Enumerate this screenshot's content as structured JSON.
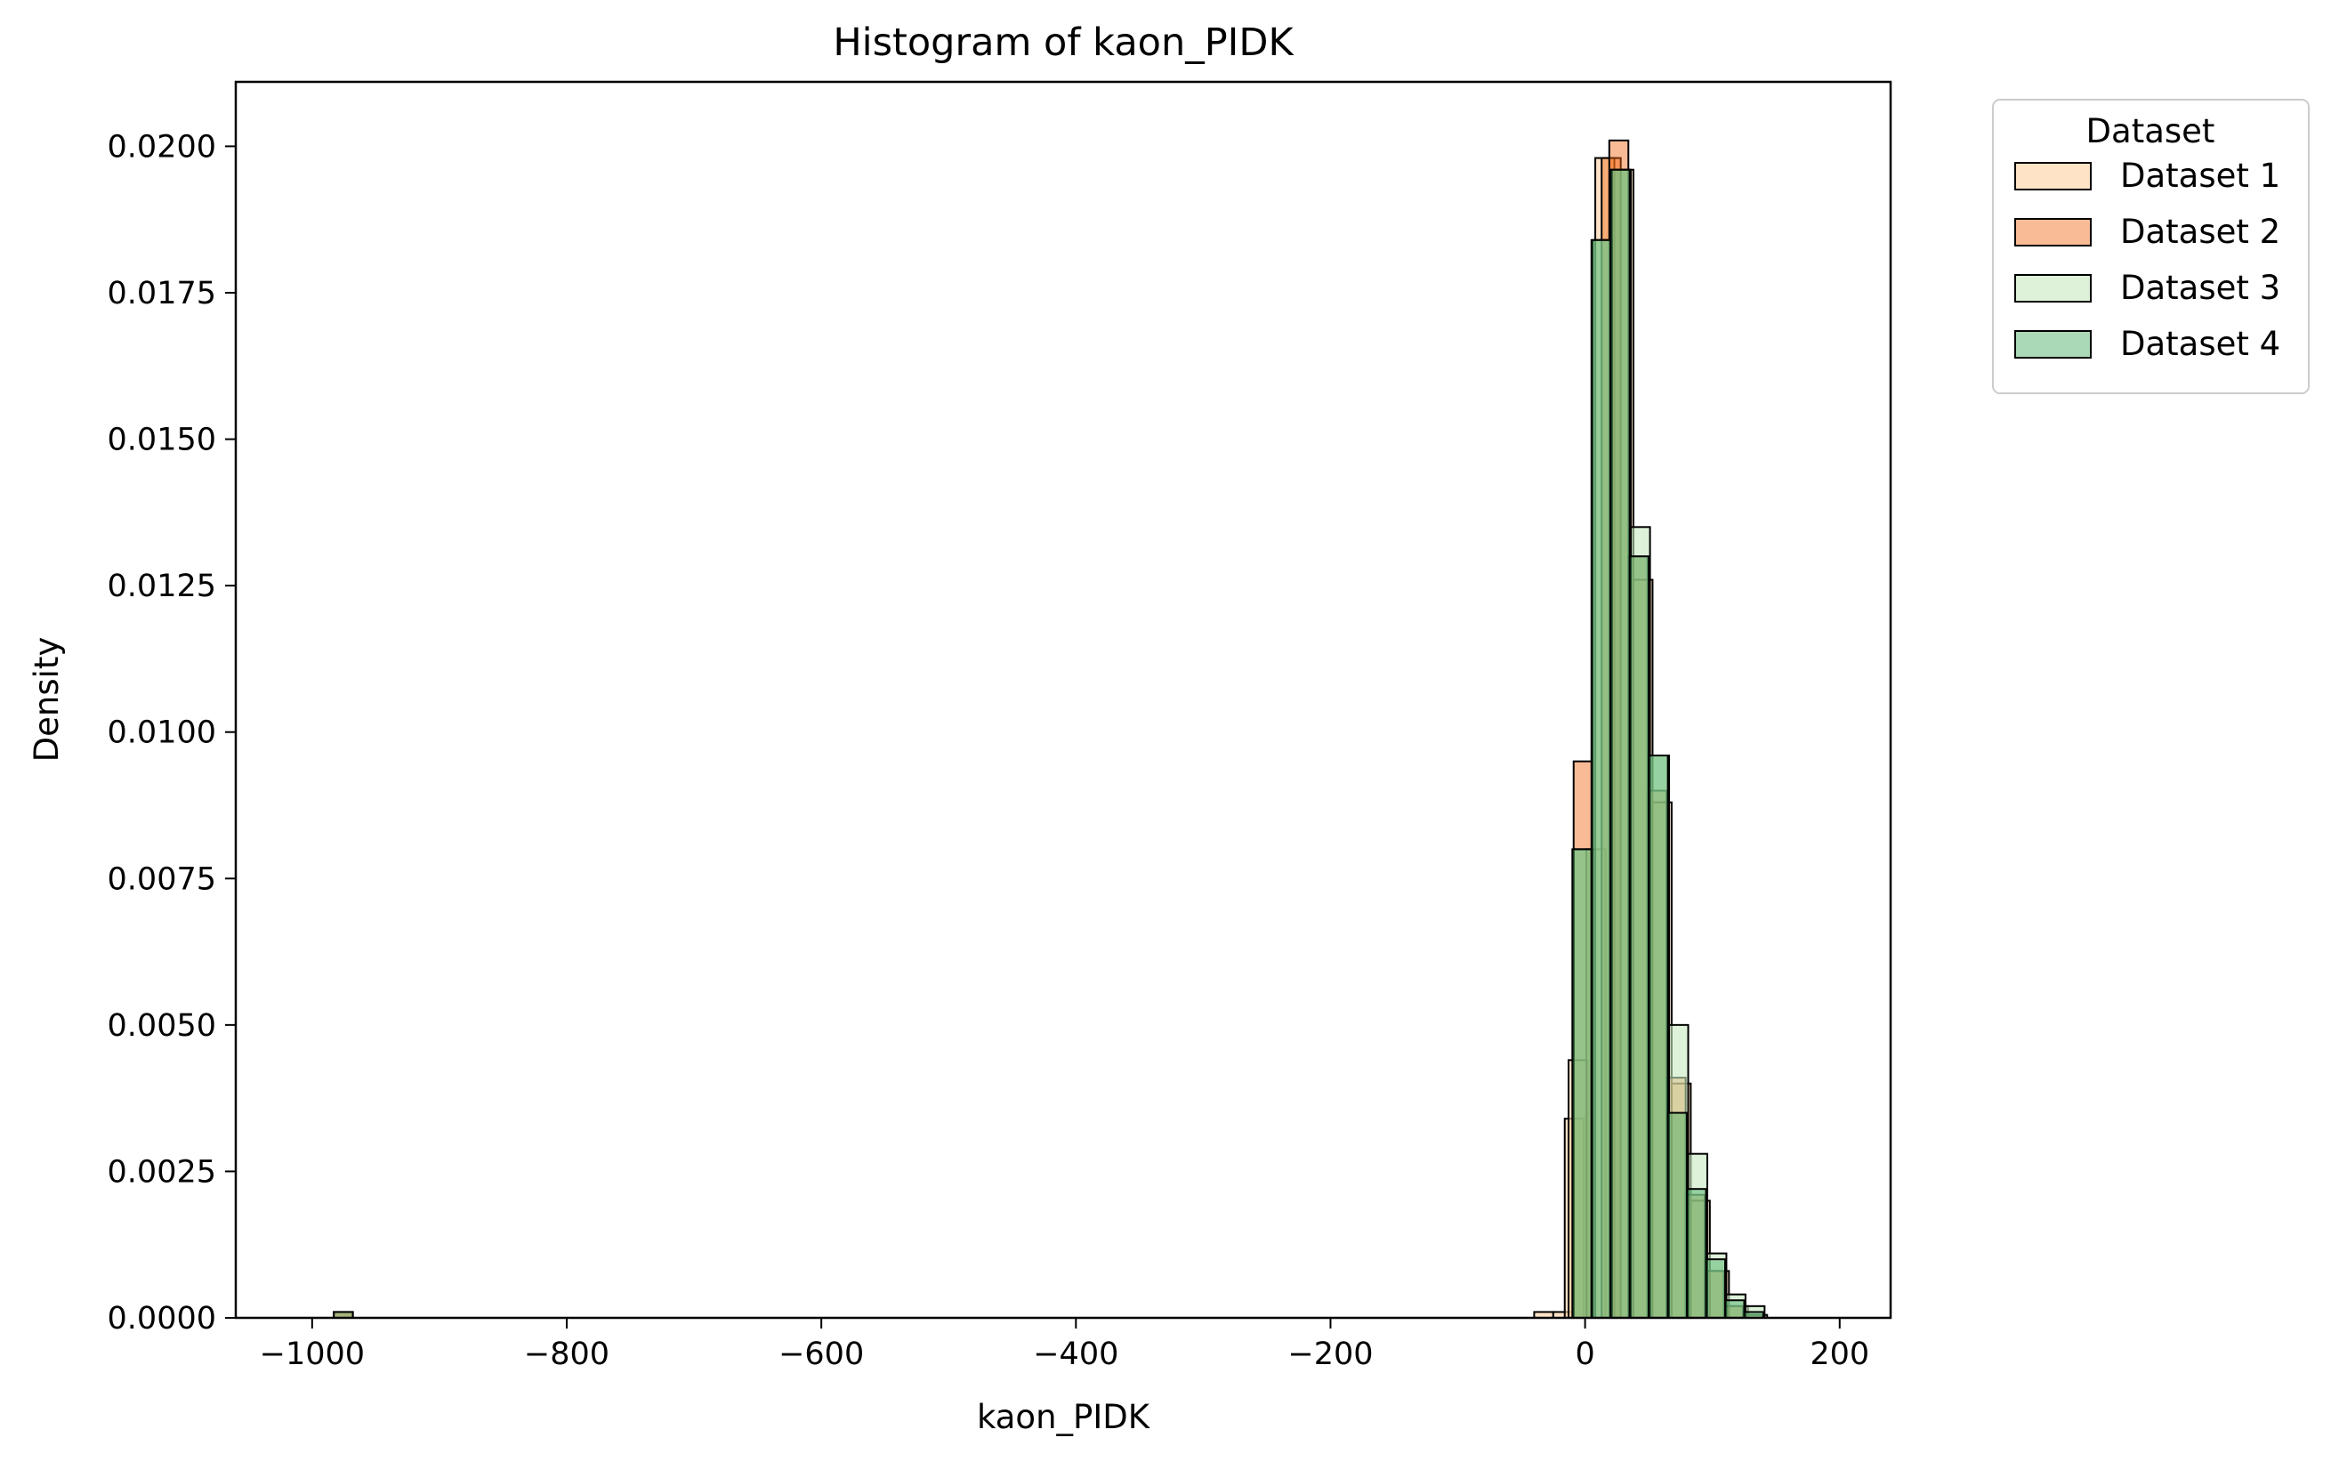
{
  "chart_data": {
    "type": "histogram",
    "title": "Histogram of kaon_PIDK",
    "xlabel": "kaon_PIDK",
    "ylabel": "Density",
    "xlim": [
      -1060,
      240
    ],
    "ylim": [
      0,
      0.0211
    ],
    "x_ticks": [
      -1000,
      -800,
      -600,
      -400,
      -200,
      0,
      200
    ],
    "x_tick_labels": [
      "−1000",
      "−800",
      "−600",
      "−400",
      "−200",
      "0",
      "200"
    ],
    "y_ticks": [
      0,
      0.0025,
      0.005,
      0.0075,
      0.01,
      0.0125,
      0.015,
      0.0175,
      0.02
    ],
    "y_tick_labels": [
      "0.0000",
      "0.0025",
      "0.0050",
      "0.0075",
      "0.0100",
      "0.0125",
      "0.0150",
      "0.0175",
      "0.0200"
    ],
    "grid": false,
    "legend": {
      "title": "Dataset",
      "placement": "outside-top-right"
    },
    "series": [
      {
        "name": "Dataset 1",
        "color": "#fdd0a2",
        "alpha": 0.6,
        "bin_width": 15,
        "bins": [
          {
            "x": -40,
            "y": 0.0001
          },
          {
            "x": -25,
            "y": 0.0001
          },
          {
            "x": -16,
            "y": 0.0034
          },
          {
            "x": -13,
            "y": 0.0044
          },
          {
            "x": 1,
            "y": 0.008
          },
          {
            "x": 8,
            "y": 0.0198
          },
          {
            "x": 23,
            "y": 0.0196
          },
          {
            "x": 38,
            "y": 0.0126
          },
          {
            "x": 53,
            "y": 0.0088
          },
          {
            "x": 68,
            "y": 0.004
          },
          {
            "x": 83,
            "y": 0.002
          },
          {
            "x": 98,
            "y": 0.0008
          },
          {
            "x": 113,
            "y": 0.0002
          },
          {
            "x": 128,
            "y": 5e-05
          }
        ]
      },
      {
        "name": "Dataset 2",
        "color": "#f16913",
        "alpha": 0.45,
        "bin_width": 15,
        "bins": [
          {
            "x": -983,
            "y": 0.0001
          },
          {
            "x": -9,
            "y": 0.0095
          },
          {
            "x": 13,
            "y": 0.0198
          },
          {
            "x": 19,
            "y": 0.0201
          },
          {
            "x": 34,
            "y": 0.013
          },
          {
            "x": 49,
            "y": 0.009
          },
          {
            "x": 64,
            "y": 0.0041
          },
          {
            "x": 79,
            "y": 0.0021
          },
          {
            "x": 94,
            "y": 0.0008
          },
          {
            "x": 109,
            "y": 0.0002
          },
          {
            "x": 124,
            "y": 5e-05
          }
        ]
      },
      {
        "name": "Dataset 3",
        "color": "#c7e9c0",
        "alpha": 0.6,
        "bin_width": 15,
        "bins": [
          {
            "x": -9,
            "y": 0.008
          },
          {
            "x": 6,
            "y": 0.0184
          },
          {
            "x": 21,
            "y": 0.0196
          },
          {
            "x": 36,
            "y": 0.0135
          },
          {
            "x": 51,
            "y": 0.0096
          },
          {
            "x": 66,
            "y": 0.005
          },
          {
            "x": 81,
            "y": 0.0028
          },
          {
            "x": 96,
            "y": 0.0011
          },
          {
            "x": 111,
            "y": 0.0004
          },
          {
            "x": 126,
            "y": 0.0002
          }
        ]
      },
      {
        "name": "Dataset 4",
        "color": "#41ab5d",
        "alpha": 0.45,
        "bin_width": 15,
        "bins": [
          {
            "x": -983,
            "y": 0.0001
          },
          {
            "x": -10,
            "y": 0.008
          },
          {
            "x": 5,
            "y": 0.0184
          },
          {
            "x": 20,
            "y": 0.0196
          },
          {
            "x": 35,
            "y": 0.013
          },
          {
            "x": 50,
            "y": 0.0096
          },
          {
            "x": 65,
            "y": 0.0035
          },
          {
            "x": 80,
            "y": 0.0022
          },
          {
            "x": 95,
            "y": 0.001
          },
          {
            "x": 110,
            "y": 0.0003
          },
          {
            "x": 125,
            "y": 0.0001
          }
        ]
      }
    ]
  }
}
